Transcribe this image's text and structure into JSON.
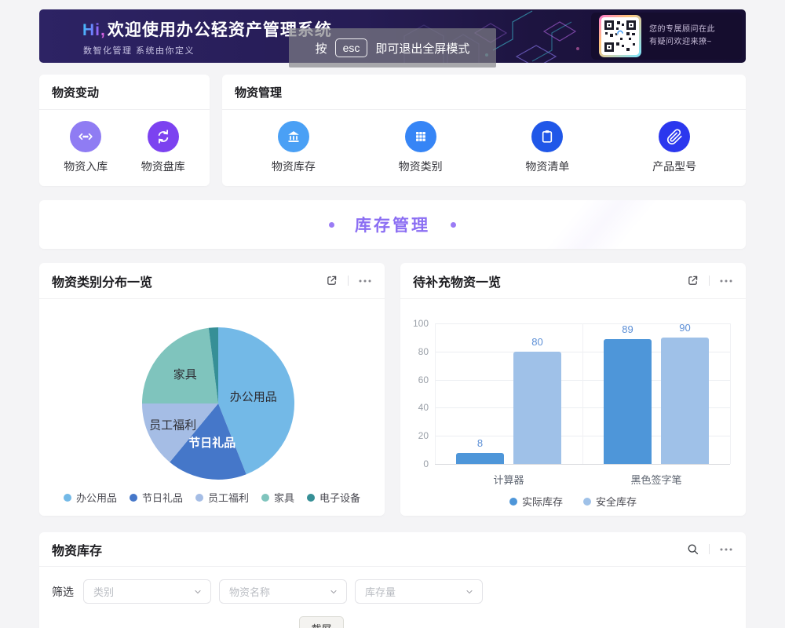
{
  "hero": {
    "greeting": "Hi,",
    "title": "欢迎使用办公轻资产管理系统",
    "subtitle": "数智化管理 系统由你定义",
    "qr_line1": "您的专属顾问在此",
    "qr_line2": "有疑问欢迎来撩~",
    "qr_icon": "qr-code"
  },
  "esc_toast": {
    "prefix": "按",
    "key": "esc",
    "suffix": "即可退出全屏模式"
  },
  "shortcut_cards": {
    "change": {
      "title": "物资变动",
      "items": [
        {
          "label": "物资入库",
          "icon": "arrows-dots-icon",
          "color": "#8f7cf3"
        },
        {
          "label": "物资盘库",
          "icon": "sync-icon",
          "color": "#7c42f0"
        }
      ]
    },
    "manage": {
      "title": "物资管理",
      "items": [
        {
          "label": "物资库存",
          "icon": "bank-icon",
          "color": "#4aa0f5"
        },
        {
          "label": "物资类别",
          "icon": "grid-icon",
          "color": "#3685f6"
        },
        {
          "label": "物资清单",
          "icon": "clipboard-icon",
          "color": "#2057e8"
        },
        {
          "label": "产品型号",
          "icon": "paperclip-icon",
          "color": "#2b37ee"
        }
      ]
    }
  },
  "section_banner": {
    "text": "库存管理",
    "accent_color": "#8b6ef3"
  },
  "pie_card": {
    "title": "物资类别分布一览",
    "icons": [
      "open-in-new",
      "ellipsis"
    ]
  },
  "bar_card": {
    "title": "待补充物资一览",
    "icons": [
      "open-in-new",
      "ellipsis"
    ]
  },
  "inventory_card": {
    "title": "物资库存",
    "icons": [
      "magnifier",
      "ellipsis"
    ],
    "filter_label": "筛选",
    "filters": [
      "类别",
      "物资名称",
      "库存量"
    ]
  },
  "screenshot_button": {
    "label": "截屏"
  },
  "chart_data": [
    {
      "type": "pie",
      "title": "物资类别分布一览",
      "labels": [
        "办公用品",
        "节日礼品",
        "员工福利",
        "家具",
        "电子设备"
      ],
      "values": [
        44,
        17,
        14,
        23,
        2
      ],
      "colors": [
        "#73b9e7",
        "#4577c9",
        "#a5bde5",
        "#7fc4bd",
        "#368f96"
      ],
      "legend_position": "bottom",
      "slice_labels_shown": [
        "办公用品",
        "节日礼品",
        "员工福利",
        "家具"
      ]
    },
    {
      "type": "bar",
      "title": "待补充物资一览",
      "categories": [
        "计算器",
        "黑色签字笔"
      ],
      "series": [
        {
          "name": "实际库存",
          "values": [
            8,
            89
          ],
          "color": "#4e96d9"
        },
        {
          "name": "安全库存",
          "values": [
            80,
            90
          ],
          "color": "#9fc1e8"
        }
      ],
      "ylim": [
        0,
        100
      ],
      "yticks": [
        0,
        20,
        40,
        60,
        80,
        100
      ],
      "grid": true,
      "value_labels": true,
      "legend_position": "bottom"
    }
  ]
}
